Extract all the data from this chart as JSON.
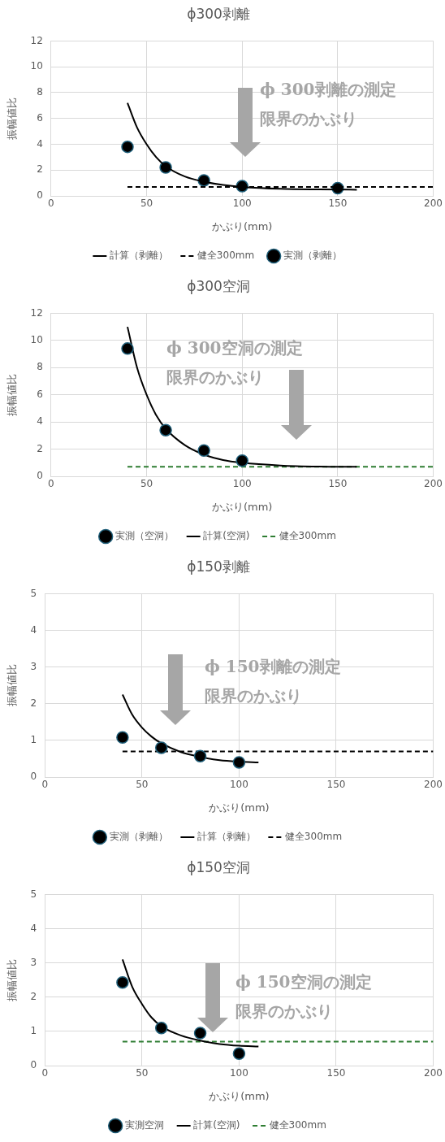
{
  "chart_data": [
    {
      "type": "line",
      "title": "ϕ300剥離",
      "xlabel": "かぶり(mm)",
      "ylabel": "振幅値比",
      "xlim": [
        0,
        200
      ],
      "xticks": [
        0,
        50,
        100,
        150,
        200
      ],
      "ylim": [
        0,
        12
      ],
      "yticks": [
        0,
        2,
        4,
        6,
        8,
        10,
        12
      ],
      "grid": true,
      "legend": "bottom",
      "annotations": [
        "ϕ 300剥離の測定",
        "限界のかぶり"
      ],
      "series": [
        {
          "name": "計算（剥離）",
          "type": "line",
          "color": "#000000",
          "line_style": "solid",
          "marker": "none",
          "x": [
            40,
            45,
            50,
            55,
            60,
            70,
            80,
            90,
            100,
            120,
            140,
            160
          ],
          "values": [
            7.2,
            5.3,
            4.0,
            3.0,
            2.3,
            1.5,
            1.1,
            0.85,
            0.7,
            0.55,
            0.5,
            0.48
          ]
        },
        {
          "name": "健全300mm",
          "type": "line",
          "color": "#000000",
          "line_style": "dashed",
          "marker": "none",
          "x": [
            40,
            200
          ],
          "values": [
            0.7,
            0.7
          ]
        },
        {
          "name": "実測（剥離）",
          "type": "scatter",
          "color": "#000000",
          "marker": "circle",
          "x": [
            40,
            60,
            80,
            100,
            150
          ],
          "values": [
            3.8,
            2.2,
            1.2,
            0.75,
            0.6
          ]
        }
      ]
    },
    {
      "type": "line",
      "title": "ϕ300空洞",
      "xlabel": "かぶり(mm)",
      "ylabel": "振幅値比",
      "xlim": [
        0,
        200
      ],
      "xticks": [
        0,
        50,
        100,
        150,
        200
      ],
      "ylim": [
        0,
        12
      ],
      "yticks": [
        0,
        2,
        4,
        6,
        8,
        10,
        12
      ],
      "grid": true,
      "legend": "bottom",
      "annotations": [
        "ϕ 300空洞の測定",
        "限界のかぶり"
      ],
      "series": [
        {
          "name": "実測（空洞）",
          "type": "scatter",
          "color": "#000000",
          "marker": "circle",
          "x": [
            40,
            60,
            80,
            100
          ],
          "values": [
            9.4,
            3.4,
            1.9,
            1.15
          ]
        },
        {
          "name": "計算(空洞)",
          "type": "line",
          "color": "#000000",
          "line_style": "solid",
          "marker": "none",
          "x": [
            40,
            45,
            50,
            55,
            60,
            70,
            80,
            90,
            100,
            120,
            140,
            160
          ],
          "values": [
            11.0,
            8.0,
            6.0,
            4.5,
            3.5,
            2.3,
            1.6,
            1.2,
            1.0,
            0.8,
            0.72,
            0.7
          ]
        },
        {
          "name": "健全300mm",
          "type": "line",
          "color": "#2e7d32",
          "line_style": "dashed",
          "marker": "none",
          "x": [
            40,
            200
          ],
          "values": [
            0.7,
            0.7
          ]
        }
      ]
    },
    {
      "type": "line",
      "title": "ϕ150剥離",
      "xlabel": "かぶり(mm)",
      "ylabel": "振幅値比",
      "xlim": [
        0,
        200
      ],
      "xticks": [
        0,
        50,
        100,
        150,
        200
      ],
      "ylim": [
        0,
        5
      ],
      "yticks": [
        0,
        1,
        2,
        3,
        4,
        5
      ],
      "grid": true,
      "legend": "bottom",
      "annotations": [
        "ϕ 150剥離の測定",
        "限界のかぶり"
      ],
      "series": [
        {
          "name": "実測（剥離）",
          "type": "scatter",
          "color": "#000000",
          "marker": "circle",
          "x": [
            40,
            60,
            80,
            100
          ],
          "values": [
            1.08,
            0.8,
            0.57,
            0.4
          ]
        },
        {
          "name": "計算（剥離）",
          "type": "line",
          "color": "#000000",
          "line_style": "solid",
          "marker": "none",
          "x": [
            40,
            45,
            50,
            55,
            60,
            70,
            80,
            90,
            100,
            110
          ],
          "values": [
            2.25,
            1.7,
            1.35,
            1.1,
            0.92,
            0.68,
            0.55,
            0.46,
            0.42,
            0.4
          ]
        },
        {
          "name": "健全300mm",
          "type": "line",
          "color": "#000000",
          "line_style": "dashed",
          "marker": "none",
          "x": [
            40,
            200
          ],
          "values": [
            0.7,
            0.7
          ]
        }
      ]
    },
    {
      "type": "line",
      "title": "ϕ150空洞",
      "xlabel": "かぶり(mm)",
      "ylabel": "振幅値比",
      "xlim": [
        0,
        200
      ],
      "xticks": [
        0,
        50,
        100,
        150,
        200
      ],
      "ylim": [
        0,
        5
      ],
      "yticks": [
        0,
        1,
        2,
        3,
        4,
        5
      ],
      "grid": true,
      "legend": "bottom",
      "annotations": [
        "ϕ 150空洞の測定",
        "限界のかぶり"
      ],
      "series": [
        {
          "name": "実測空洞",
          "type": "scatter",
          "color": "#000000",
          "marker": "circle",
          "x": [
            40,
            60,
            80,
            100
          ],
          "values": [
            2.43,
            1.1,
            0.95,
            0.35
          ]
        },
        {
          "name": "計算(空洞)",
          "type": "line",
          "color": "#000000",
          "line_style": "solid",
          "marker": "none",
          "x": [
            40,
            45,
            50,
            55,
            60,
            70,
            80,
            90,
            100,
            110
          ],
          "values": [
            3.1,
            2.3,
            1.8,
            1.4,
            1.15,
            0.88,
            0.73,
            0.63,
            0.58,
            0.56
          ]
        },
        {
          "name": "健全300mm",
          "type": "line",
          "color": "#2e7d32",
          "line_style": "dashed",
          "marker": "none",
          "x": [
            40,
            200
          ],
          "values": [
            0.7,
            0.7
          ]
        }
      ]
    }
  ]
}
